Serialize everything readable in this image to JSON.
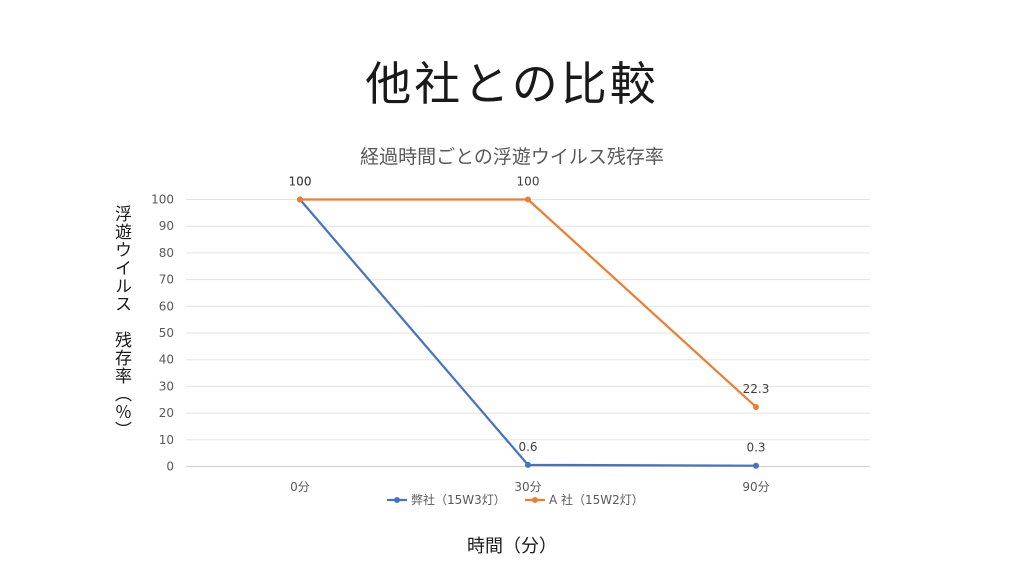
{
  "slide_title": "他社との比較",
  "chart_data": {
    "type": "line",
    "title": "経過時間ごとの浮遊ウイルス残存率",
    "xlabel": "時間（分）",
    "ylabel": "浮遊ウイルス　残存率（％）",
    "categories": [
      "0分",
      "30分",
      "90分"
    ],
    "ylim": [
      0,
      100
    ],
    "yticks": [
      0,
      10,
      20,
      30,
      40,
      50,
      60,
      70,
      80,
      90,
      100
    ],
    "grid": true,
    "legend_position": "bottom",
    "series": [
      {
        "name": "弊社（15W3灯）",
        "color": "#4472C4",
        "values": [
          100,
          0.6,
          0.3
        ],
        "labels": [
          "100",
          "0.6",
          "0.3"
        ]
      },
      {
        "name": "A 社（15W2灯）",
        "color": "#ED7D31",
        "values": [
          100,
          100,
          22.3
        ],
        "labels": [
          "100",
          "100",
          "22.3"
        ]
      }
    ]
  }
}
